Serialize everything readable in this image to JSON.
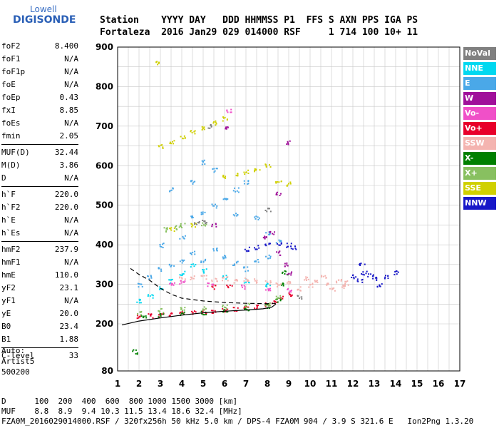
{
  "logo": {
    "line1": "Lowell",
    "line2": "DIGISONDE"
  },
  "header": {
    "line1": "Station    YYYY DAY   DDD HHMMSS P1  FFS S AXN PPS IGA PS",
    "line2": "Fortaleza  2016 Jan29 029 014000 RSF     1 714 100 10+ 11"
  },
  "params": {
    "group1": [
      {
        "name": "foF2",
        "value": "8.400"
      },
      {
        "name": "foF1",
        "value": "N/A"
      },
      {
        "name": "foF1p",
        "value": "N/A"
      },
      {
        "name": "foE",
        "value": "N/A"
      },
      {
        "name": "foEp",
        "value": "0.43"
      },
      {
        "name": "fxI",
        "value": "8.85"
      },
      {
        "name": "foEs",
        "value": "N/A"
      },
      {
        "name": "fmin",
        "value": "2.05"
      }
    ],
    "group2": [
      {
        "name": "MUF(D)",
        "value": "32.44"
      },
      {
        "name": "M(D)",
        "value": "3.86"
      },
      {
        "name": "D",
        "value": "N/A"
      }
    ],
    "group3": [
      {
        "name": "h`F",
        "value": "220.0"
      },
      {
        "name": "h`F2",
        "value": "220.0"
      },
      {
        "name": "h`E",
        "value": "N/A"
      },
      {
        "name": "h`Es",
        "value": "N/A"
      }
    ],
    "group4": [
      {
        "name": "hmF2",
        "value": "237.9"
      },
      {
        "name": "hmF1",
        "value": "N/A"
      },
      {
        "name": "hmE",
        "value": "110.0"
      },
      {
        "name": "yF2",
        "value": "23.1"
      },
      {
        "name": "yF1",
        "value": "N/A"
      },
      {
        "name": "yE",
        "value": "20.0"
      },
      {
        "name": "B0",
        "value": "23.4"
      },
      {
        "name": "B1",
        "value": "1.88"
      }
    ],
    "group5": [
      {
        "name": "C-level",
        "value": "33"
      }
    ]
  },
  "auto": {
    "line1": "Auto:",
    "line2": "Artist5",
    "line3": "500200"
  },
  "footer": {
    "line1": "D      100  200  400  600  800 1000 1500 3000 [km]",
    "line2": "MUF    8.8  8.9  9.4 10.3 11.5 13.4 18.6 32.4 [MHz]",
    "line3": "FZA0M_2016029014000.RSF / 320fx256h 50 kHz 5.0 km / DPS-4 FZA0M 904 / 3.9 S 321.6 E   Ion2Png 1.3.20"
  },
  "legend": [
    {
      "label": "NoVal",
      "color": "#808080"
    },
    {
      "label": "NNE",
      "color": "#00d8f0"
    },
    {
      "label": "E",
      "color": "#4aa8e8"
    },
    {
      "label": "W",
      "color": "#a0109a"
    },
    {
      "label": "Vo-",
      "color": "#f050c8"
    },
    {
      "label": "Vo+",
      "color": "#e8002a"
    },
    {
      "label": "SSW",
      "color": "#f4b4b0"
    },
    {
      "label": "X-",
      "color": "#008000"
    },
    {
      "label": "X+",
      "color": "#88c060"
    },
    {
      "label": "SSE",
      "color": "#d0d000"
    },
    {
      "label": "NNW",
      "color": "#1818c8"
    }
  ],
  "chart_data": {
    "type": "scatter",
    "xlim": [
      1,
      17
    ],
    "ylim": [
      80,
      900
    ],
    "xticks": [
      "1",
      "2",
      "3",
      "4",
      "5",
      "6",
      "7",
      "8",
      "9",
      "10",
      "11",
      "12",
      "13",
      "14",
      "15",
      "16",
      "17"
    ],
    "yticks": [
      "80",
      "200",
      "300",
      "400",
      "500",
      "600",
      "700",
      "800",
      "900"
    ],
    "grid": true,
    "legend_position": "right",
    "profile_curve": [
      [
        1.2,
        197
      ],
      [
        2,
        207
      ],
      [
        3,
        215
      ],
      [
        4,
        222
      ],
      [
        5,
        228
      ],
      [
        6,
        232
      ],
      [
        7,
        235
      ],
      [
        7.8,
        238
      ],
      [
        8.2,
        242
      ],
      [
        8.4,
        250
      ]
    ],
    "profile_dashed": [
      [
        1.6,
        340
      ],
      [
        2,
        325
      ],
      [
        2.5,
        310
      ],
      [
        3,
        290
      ],
      [
        3.5,
        275
      ],
      [
        4,
        265
      ],
      [
        5,
        258
      ],
      [
        6,
        254
      ],
      [
        7,
        252
      ],
      [
        8,
        251
      ],
      [
        8.4,
        252
      ]
    ],
    "series": [
      {
        "color": "#e8002a",
        "points": [
          [
            2,
            220
          ],
          [
            2.5,
            222
          ],
          [
            3,
            224
          ],
          [
            3.5,
            226
          ],
          [
            4,
            228
          ],
          [
            4.5,
            230
          ],
          [
            5,
            232
          ],
          [
            5.5,
            234
          ],
          [
            6,
            236
          ],
          [
            6.5,
            238
          ],
          [
            7,
            240
          ],
          [
            7.5,
            244
          ],
          [
            8,
            250
          ],
          [
            8.3,
            258
          ],
          [
            8.6,
            270
          ],
          [
            9,
            275
          ],
          [
            5.5,
            295
          ],
          [
            6.2,
            298
          ]
        ]
      },
      {
        "color": "#008000",
        "points": [
          [
            2.2,
            218
          ],
          [
            3,
            222
          ],
          [
            4,
            226
          ],
          [
            5,
            230
          ],
          [
            6,
            234
          ],
          [
            7,
            238
          ],
          [
            8,
            246
          ],
          [
            8.5,
            262
          ],
          [
            8.7,
            300
          ],
          [
            8.8,
            330
          ],
          [
            1.8,
            130
          ]
        ]
      },
      {
        "color": "#4aa8e8",
        "points": [
          [
            2.5,
            320
          ],
          [
            3,
            340
          ],
          [
            3.5,
            350
          ],
          [
            4,
            360
          ],
          [
            4.5,
            380
          ],
          [
            5,
            360
          ],
          [
            5.5,
            390
          ],
          [
            6,
            370
          ],
          [
            6.5,
            355
          ],
          [
            7,
            340
          ],
          [
            7.5,
            360
          ],
          [
            8,
            370
          ],
          [
            2,
            300
          ],
          [
            3,
            400
          ],
          [
            4,
            420
          ],
          [
            4.5,
            470
          ],
          [
            5,
            480
          ],
          [
            5.5,
            500
          ],
          [
            6,
            520
          ],
          [
            6.5,
            540
          ],
          [
            7,
            560
          ],
          [
            3.5,
            540
          ],
          [
            4.5,
            560
          ],
          [
            5,
            610
          ],
          [
            5.5,
            590
          ],
          [
            6.5,
            480
          ],
          [
            7.5,
            470
          ],
          [
            8,
            430
          ],
          [
            8.5,
            410
          ]
        ]
      },
      {
        "color": "#00d8f0",
        "points": [
          [
            2,
            260
          ],
          [
            2.5,
            270
          ],
          [
            3,
            290
          ],
          [
            3.5,
            310
          ],
          [
            4,
            330
          ],
          [
            4.5,
            350
          ],
          [
            5,
            335
          ],
          [
            6,
            320
          ],
          [
            7,
            310
          ],
          [
            8,
            300
          ]
        ]
      },
      {
        "color": "#1818c8",
        "points": [
          [
            7,
            390
          ],
          [
            7.5,
            395
          ],
          [
            8,
            400
          ],
          [
            8.5,
            405
          ],
          [
            9,
            400
          ],
          [
            9.2,
            395
          ],
          [
            12,
            320
          ],
          [
            12.3,
            310
          ],
          [
            12.5,
            330
          ],
          [
            12.8,
            325
          ],
          [
            13,
            315
          ],
          [
            13.5,
            320
          ],
          [
            14,
            330
          ],
          [
            12.4,
            350
          ],
          [
            13.2,
            300
          ]
        ]
      },
      {
        "color": "#a0109a",
        "points": [
          [
            7.8,
            420
          ],
          [
            8.2,
            430
          ],
          [
            8.5,
            380
          ],
          [
            8.8,
            350
          ],
          [
            9,
            330
          ],
          [
            5.5,
            450
          ],
          [
            6,
            700
          ],
          [
            8.5,
            530
          ],
          [
            9,
            660
          ]
        ]
      },
      {
        "color": "#f4b4b0",
        "points": [
          [
            4,
            315
          ],
          [
            4.5,
            318
          ],
          [
            5,
            320
          ],
          [
            5.5,
            312
          ],
          [
            6,
            315
          ],
          [
            6.5,
            310
          ],
          [
            7,
            312
          ],
          [
            7.5,
            310
          ],
          [
            8,
            305
          ],
          [
            8.5,
            300
          ],
          [
            9,
            305
          ],
          [
            10,
            300
          ],
          [
            10.3,
            310
          ],
          [
            10.6,
            320
          ],
          [
            10.8,
            300
          ],
          [
            11,
            290
          ],
          [
            11.3,
            310
          ],
          [
            11.5,
            295
          ],
          [
            11.7,
            305
          ],
          [
            9.5,
            290
          ],
          [
            9.8,
            315
          ]
        ]
      },
      {
        "color": "#f050c8",
        "points": [
          [
            3.5,
            300
          ],
          [
            4,
            305
          ],
          [
            5.3,
            300
          ],
          [
            6.8,
            295
          ],
          [
            8,
            290
          ],
          [
            9,
            285
          ],
          [
            6.2,
            740
          ]
        ]
      },
      {
        "color": "#88c060",
        "points": [
          [
            2,
            230
          ],
          [
            3,
            235
          ],
          [
            4,
            238
          ],
          [
            5,
            240
          ],
          [
            6,
            244
          ],
          [
            7,
            248
          ],
          [
            8,
            252
          ],
          [
            8.5,
            270
          ],
          [
            4,
            450
          ],
          [
            5,
            455
          ],
          [
            3.2,
            440
          ],
          [
            3.8,
            445
          ]
        ]
      },
      {
        "color": "#d0d000",
        "points": [
          [
            3,
            650
          ],
          [
            3.5,
            660
          ],
          [
            4,
            675
          ],
          [
            4.5,
            685
          ],
          [
            5,
            695
          ],
          [
            5.5,
            710
          ],
          [
            6,
            720
          ],
          [
            2.9,
            860
          ],
          [
            6,
            575
          ],
          [
            6.5,
            580
          ],
          [
            7,
            585
          ],
          [
            7.5,
            590
          ],
          [
            8,
            600
          ],
          [
            8.5,
            560
          ],
          [
            9,
            555
          ],
          [
            3.5,
            440
          ],
          [
            4.5,
            450
          ]
        ]
      },
      {
        "color": "#808080",
        "points": [
          [
            4.7,
            455
          ],
          [
            5,
            460
          ],
          [
            5.3,
            700
          ],
          [
            8,
            490
          ],
          [
            9.5,
            270
          ]
        ]
      }
    ]
  }
}
